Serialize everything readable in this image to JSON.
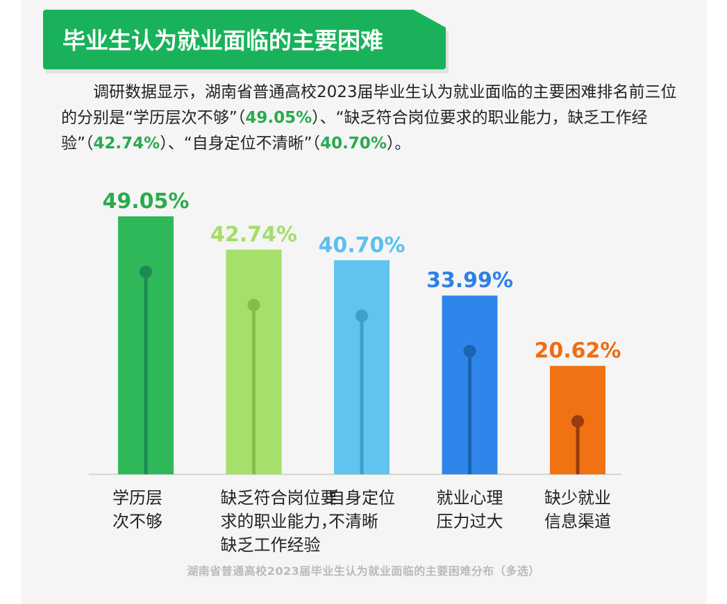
{
  "header": {
    "title": "毕业生认为就业面临的主要困难"
  },
  "description": {
    "seg1": "调研数据显示，湖南省普通高校2023届毕业生认为就业面临的主要困难排名前三位的分别是“学历层次不够”（",
    "pct1": "49.05%",
    "seg2": "）、“缺乏符合岗位要求的职业能力，缺乏工作经验”（",
    "pct2": "42.74%",
    "seg3": "）、“自身定位不清晰”（",
    "pct3": "40.70%",
    "seg4": "）。"
  },
  "chart_data": {
    "type": "bar",
    "title": "湖南省普通高校2023届毕业生认为就业面临的主要困难分布（多选）",
    "categories": [
      [
        "学历层",
        "次不够"
      ],
      [
        "缺乏符合岗位要",
        "求的职业能力，",
        "缺乏工作经验"
      ],
      [
        "自身定位",
        "不清晰"
      ],
      [
        "就业心理",
        "压力过大"
      ],
      [
        "缺少就业",
        "信息渠道"
      ]
    ],
    "values": [
      49.05,
      42.74,
      40.7,
      33.99,
      20.62
    ],
    "value_labels": [
      "49.05%",
      "42.74%",
      "40.70%",
      "33.99%",
      "20.62%"
    ],
    "unit": "%",
    "bar_colors": [
      "#2fb85a",
      "#a6e06b",
      "#61c3f0",
      "#2f86ea",
      "#f07212"
    ],
    "label_colors": [
      "#2aaa4e",
      "#a6dd6a",
      "#5cbfee",
      "#2f7fe4",
      "#ef6d12"
    ],
    "stem_colors": [
      "#1d8a55",
      "#84bd4d",
      "#3ba2c7",
      "#1a64b4",
      "#9a3a10"
    ],
    "ylim": [
      0,
      49.05
    ],
    "grid": false,
    "legend": "none"
  }
}
